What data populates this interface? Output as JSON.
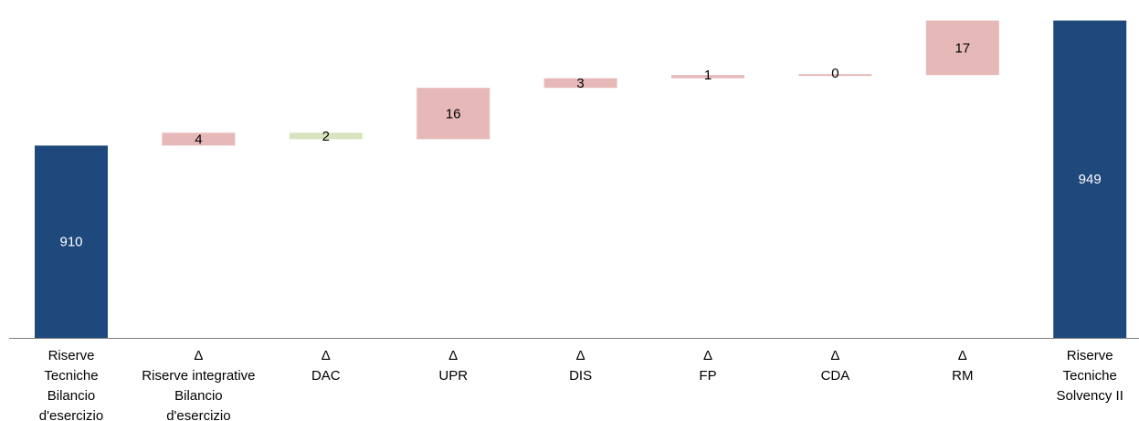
{
  "chart_data": {
    "type": "waterfall",
    "categories": [
      [
        "Riserve",
        "Tecniche",
        "Bilancio",
        "d'esercizio"
      ],
      [
        "Δ",
        "Riserve integrative",
        "Bilancio",
        "d'esercizio"
      ],
      [
        "Δ",
        "DAC"
      ],
      [
        "Δ",
        "UPR"
      ],
      [
        "Δ",
        "DIS"
      ],
      [
        "Δ",
        "FP"
      ],
      [
        "Δ",
        "CDA"
      ],
      [
        "Δ",
        "RM"
      ],
      [
        "Riserve",
        "Tecniche",
        "Solvency II"
      ]
    ],
    "values": [
      910,
      4,
      -2,
      16,
      3,
      1,
      0,
      17,
      949
    ],
    "value_labels": [
      "910",
      "4",
      "2",
      "16",
      "3",
      "1",
      "0",
      "17",
      "949"
    ],
    "measure": [
      "total",
      "relative",
      "relative",
      "relative",
      "relative",
      "relative",
      "relative",
      "relative",
      "total"
    ],
    "colors": {
      "total": "#1f497d",
      "increase": "#e6b9b8",
      "decrease": "#d7e4bd"
    },
    "ylim": [
      850,
      952
    ]
  }
}
